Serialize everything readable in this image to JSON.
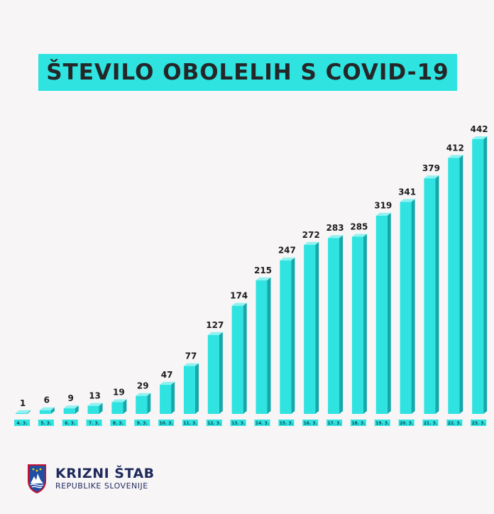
{
  "header": {
    "title": "ŠTEVILO OBOLELIH S COVID-19"
  },
  "chart_data": {
    "type": "bar",
    "title": "ŠTEVILO OBOLELIH S COVID-19",
    "categories": [
      "4. 3.",
      "5. 3.",
      "6. 3.",
      "7. 3.",
      "8. 3.",
      "9. 3.",
      "10. 3.",
      "11. 3.",
      "12. 3.",
      "13. 3.",
      "14. 3.",
      "15. 3.",
      "16. 3.",
      "17. 3.",
      "18. 3.",
      "19. 3.",
      "20. 3.",
      "21. 3.",
      "22. 3.",
      "23. 3."
    ],
    "values": [
      1,
      6,
      9,
      13,
      19,
      29,
      47,
      77,
      127,
      174,
      215,
      247,
      272,
      283,
      285,
      319,
      341,
      379,
      412,
      442
    ],
    "xlabel": "",
    "ylabel": "",
    "ylim": [
      0,
      442
    ],
    "grid": false,
    "colors": {
      "bar_front": "#2ee3e0",
      "bar_side": "#15a7ab",
      "bar_top": "#8ff2f0",
      "label_band": "#2ee3e0"
    }
  },
  "footer": {
    "org_name": "KRIZNI ŠTAB",
    "org_sub": "REPUBLIKE SLOVENIJE",
    "logo_icon": "slovenia-coat-of-arms-icon"
  }
}
